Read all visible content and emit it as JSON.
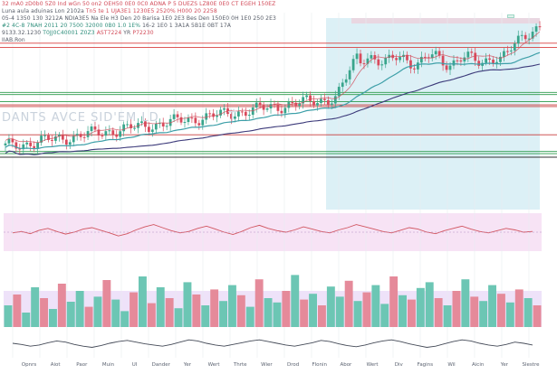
{
  "header": {
    "line1": [
      {
        "text": "32 mA0 zD0b0 5Z0 Ind wGn 50 on2",
        "tone": "p"
      },
      {
        "text": "OEH50 0E0 0C0 ADNA P 5 DUEZS",
        "tone": "p"
      },
      {
        "text": "LZ80E 0E0 CT EGEH 150EZ",
        "tone": "p"
      }
    ],
    "line2": [
      {
        "text": "Luna aula aduinas  Lon 2102a",
        "tone": "k"
      },
      {
        "text": "Tn5 te 1 UJA3E1",
        "tone": "p"
      },
      {
        "text": "1230E5  2520%  H000 20 2258",
        "tone": "p"
      }
    ],
    "line3": [
      {
        "text": "05-4 1350 130 3212A NDIA3E5 Na",
        "tone": "k"
      },
      {
        "text": "Ele H3 Den 20 Barisa 1E0 2E3 Bes Den",
        "tone": "k"
      },
      {
        "text": "150E0 0H 1E0 250 2E3",
        "tone": "k"
      }
    ],
    "line4": [
      {
        "text": "#2 4C-8 7NAH 2011  20 7500  32000 0B0 1.0 1E%",
        "tone": "g"
      },
      {
        "text": "16-2 1E0 1 3A1A 5B1E 0BT 17A",
        "tone": "k"
      }
    ],
    "line5": [
      {
        "text": "9133.32.1230",
        "tone": "k"
      },
      {
        "text": "T0JJ0C40001 Z0Z3",
        "tone": "g"
      },
      {
        "text": "AST7224",
        "tone": "p"
      },
      {
        "text": "YR",
        "tone": "k"
      },
      {
        "text": "P72230",
        "tone": "p"
      }
    ],
    "line6": [
      {
        "text": "IIAB.Ron",
        "tone": "k"
      }
    ]
  },
  "watermark": "DANTS    AVCE    SID'EM   LD",
  "watermark2": "T̈ ",
  "last_price_label": "",
  "chart_data": [
    {
      "type": "candlestick",
      "title": "",
      "xlabel": "",
      "ylabel": "",
      "x_tick_labels": [
        "Opnrs",
        "Aiot",
        "Paor",
        "Muin",
        "UI",
        "Dander",
        "Yer",
        "Wert",
        "Thrte",
        "Wier",
        "Drod",
        "Flonin",
        "Abor",
        "Wert",
        "Div",
        "Fagins",
        "Wil",
        "Aicin",
        "Yer",
        "Slestre"
      ],
      "ylim": [
        0,
        100
      ],
      "notes": "values estimated, no price axis printed",
      "candles": [],
      "moving_averages": [
        {
          "name": "",
          "color": "#3d9fa8"
        },
        {
          "name": "",
          "color": "#3c3a7a"
        },
        {
          "name": "",
          "color": "#d14a57"
        }
      ],
      "horizontal_levels": [
        {
          "value": 84.5,
          "color": "#d94040"
        },
        {
          "value": 82.3,
          "color": "#d94040"
        },
        {
          "value": 59.5,
          "color": "#2a9a4a"
        },
        {
          "value": 58.4,
          "color": "#2a9a4a"
        },
        {
          "value": 54.8,
          "color": "#2a9a4a"
        },
        {
          "value": 53.2,
          "color": "#c83a3a"
        },
        {
          "value": 52.3,
          "color": "#c83a3a"
        },
        {
          "value": 38.0,
          "color": "#c83a3a"
        },
        {
          "value": 29.5,
          "color": "#2a9a4a"
        },
        {
          "value": 28.4,
          "color": "#2a9a4a"
        },
        {
          "value": 26.6,
          "color": "#333333"
        }
      ],
      "highlight_zone": {
        "x_from_label": "Drod",
        "color": "#bfe4ef"
      }
    },
    {
      "type": "line",
      "name": "oscillator",
      "ylim": [
        0,
        100
      ],
      "color": "#d15560",
      "x": [
        0,
        1,
        2,
        3,
        4,
        5,
        6,
        7,
        8,
        9,
        10,
        11,
        12,
        13,
        14,
        15,
        16,
        17,
        18,
        19,
        20,
        21,
        22,
        23,
        24,
        25,
        26,
        27,
        28,
        29,
        30,
        31,
        32,
        33,
        34,
        35,
        36,
        37,
        38,
        39,
        40,
        41,
        42,
        43,
        44,
        45,
        46,
        47,
        48,
        49,
        50,
        51,
        52,
        53,
        54,
        55,
        56,
        57,
        58,
        59
      ],
      "values": [
        48,
        52,
        46,
        55,
        60,
        52,
        45,
        50,
        58,
        62,
        55,
        48,
        40,
        46,
        56,
        64,
        70,
        62,
        54,
        48,
        52,
        60,
        66,
        58,
        50,
        44,
        52,
        62,
        68,
        60,
        54,
        50,
        56,
        64,
        58,
        52,
        48,
        56,
        62,
        70,
        64,
        58,
        52,
        48,
        55,
        62,
        58,
        50,
        46,
        54,
        60,
        66,
        58,
        52,
        48,
        54,
        60,
        56,
        50,
        52
      ],
      "color_zone": "#f3d4f0"
    },
    {
      "type": "bar",
      "name": "volume",
      "ylim": [
        0,
        100
      ],
      "colors": {
        "up": "#6cc6b4",
        "down": "#e58a9a"
      },
      "values": [
        30,
        45,
        20,
        55,
        40,
        25,
        60,
        35,
        50,
        28,
        42,
        65,
        38,
        22,
        48,
        70,
        33,
        55,
        40,
        26,
        62,
        45,
        30,
        52,
        36,
        58,
        44,
        28,
        66,
        40,
        34,
        50,
        72,
        38,
        46,
        30,
        56,
        42,
        64,
        36,
        48,
        58,
        32,
        70,
        44,
        38,
        54,
        62,
        40,
        30,
        50,
        66,
        42,
        36,
        58,
        46,
        34,
        52,
        40,
        30
      ],
      "up": [
        1,
        0,
        1,
        1,
        0,
        1,
        0,
        1,
        1,
        0,
        1,
        0,
        1,
        1,
        0,
        1,
        0,
        1,
        0,
        1,
        1,
        0,
        1,
        0,
        1,
        1,
        0,
        1,
        0,
        1,
        1,
        0,
        1,
        0,
        1,
        0,
        1,
        1,
        0,
        1,
        0,
        1,
        1,
        0,
        1,
        0,
        1,
        1,
        0,
        1,
        0,
        1,
        0,
        1,
        1,
        0,
        1,
        0,
        1,
        0
      ]
    },
    {
      "type": "line",
      "name": "lower-oscillator",
      "ylim": [
        0,
        100
      ],
      "color": "#444a57",
      "values": [
        50,
        46,
        40,
        44,
        52,
        58,
        54,
        46,
        40,
        36,
        42,
        50,
        56,
        60,
        54,
        48,
        44,
        40,
        46,
        54,
        62,
        58,
        50,
        44,
        40,
        46,
        52,
        58,
        62,
        56,
        50,
        44,
        40,
        46,
        52,
        60,
        56,
        48,
        42,
        38,
        44,
        52,
        58,
        62,
        56,
        48,
        42,
        36,
        40,
        48,
        56,
        62,
        58,
        50,
        44,
        40,
        46,
        54,
        50,
        44
      ]
    }
  ]
}
